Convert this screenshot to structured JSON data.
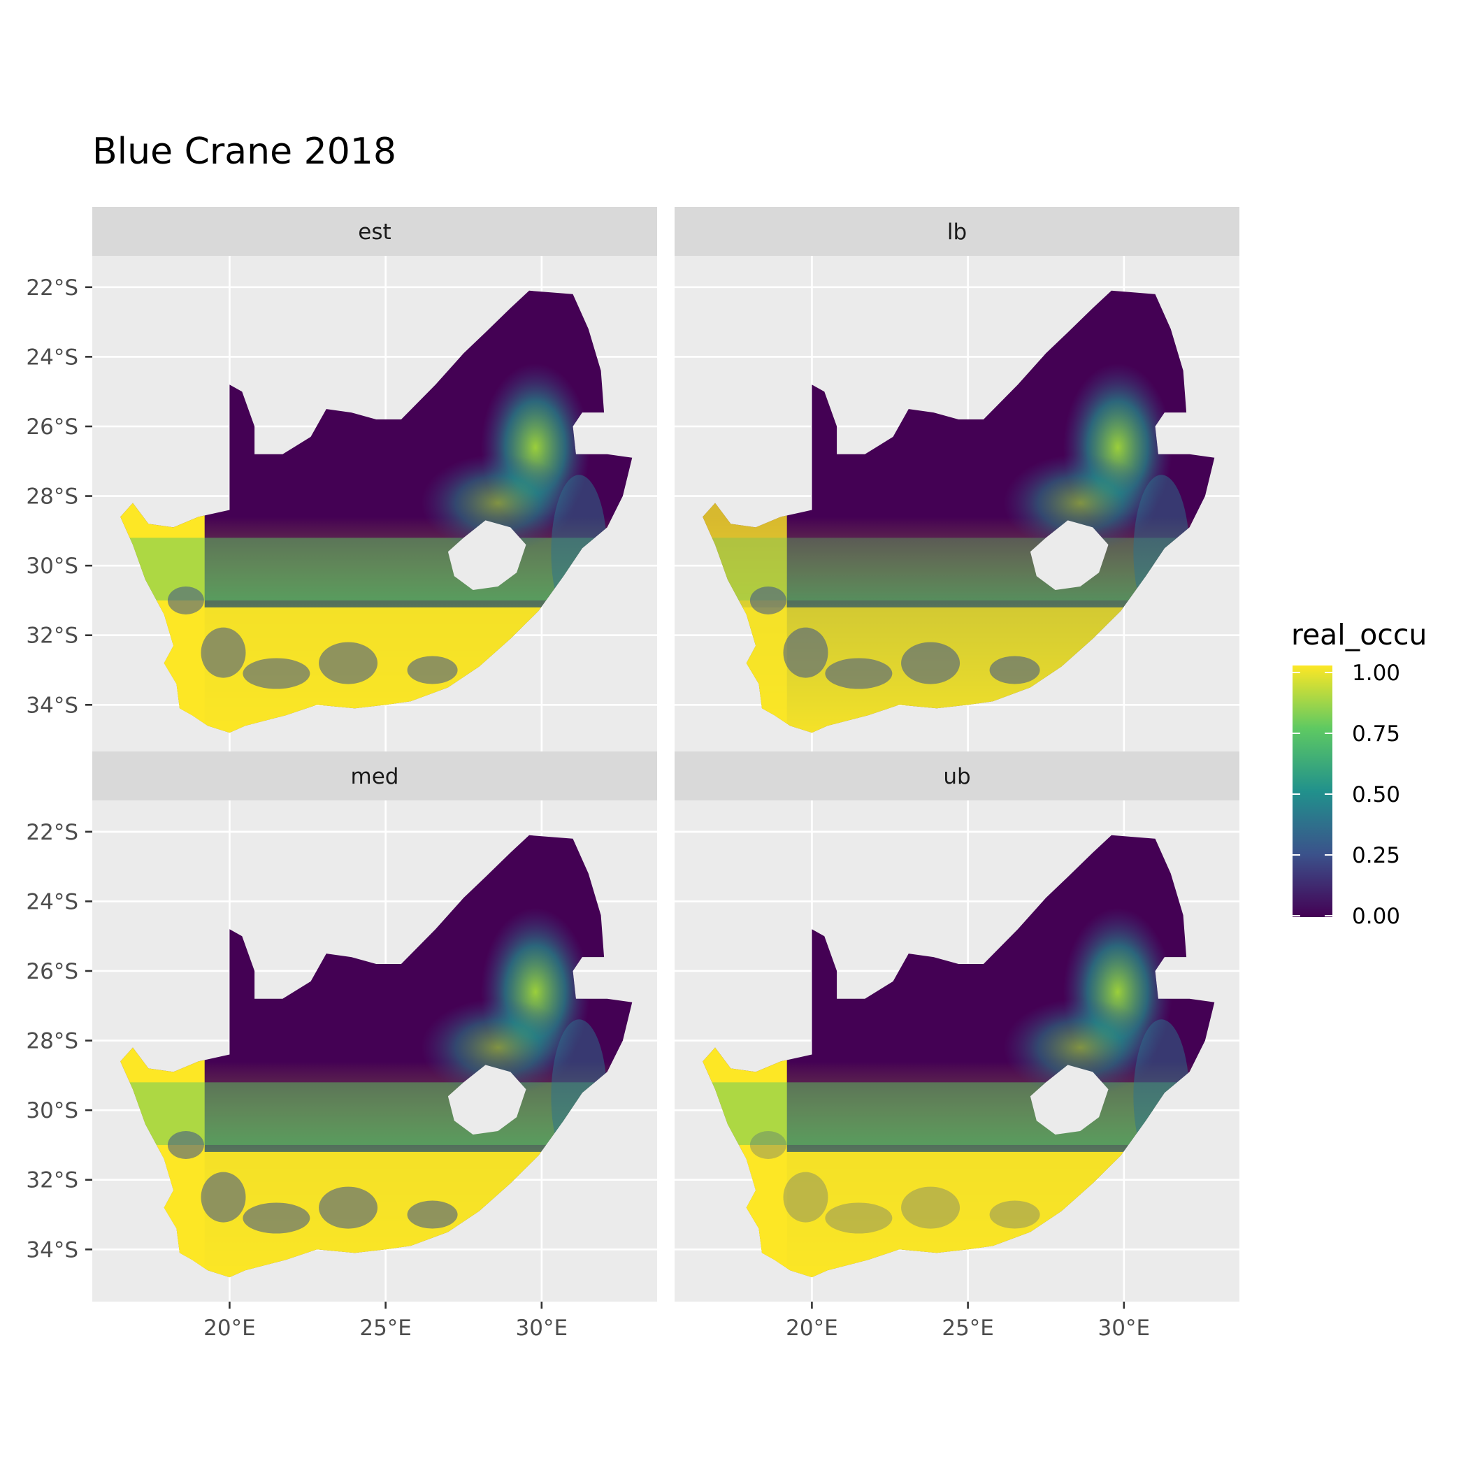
{
  "title": "Blue Crane 2018",
  "x_ticks": [
    "20°E",
    "25°E",
    "30°E"
  ],
  "y_ticks": [
    "22°S",
    "24°S",
    "26°S",
    "28°S",
    "30°S",
    "32°S",
    "34°S"
  ],
  "panels": [
    {
      "id": "est",
      "label": "est"
    },
    {
      "id": "lb",
      "label": "lb"
    },
    {
      "id": "med",
      "label": "med"
    },
    {
      "id": "ub",
      "label": "ub"
    }
  ],
  "legend": {
    "title": "real_occu",
    "labels": [
      "1.00",
      "0.75",
      "0.50",
      "0.25",
      "0.00"
    ],
    "palette": [
      "#440154",
      "#3b528b",
      "#21918c",
      "#5ec962",
      "#fde725"
    ]
  },
  "colors": {
    "panel_background": "#ebebeb",
    "strip_background": "#d9d9d9",
    "grid": "#ffffff",
    "no_data_region": "#ebebeb"
  },
  "chart_data": {
    "type": "heatmap",
    "title": "Blue Crane 2018",
    "facets": [
      "est",
      "lb",
      "med",
      "ub"
    ],
    "xlim": [
      15.6,
      33.7
    ],
    "ylim": [
      -35.5,
      -21.1
    ],
    "x_ticks": [
      20,
      25,
      30
    ],
    "y_ticks": [
      -22,
      -24,
      -26,
      -28,
      -30,
      -32,
      -34
    ],
    "fill_variable": "real_occu",
    "fill_range": [
      0,
      1
    ],
    "colormap": "viridis",
    "grid": true,
    "legend_position": "right"
  }
}
